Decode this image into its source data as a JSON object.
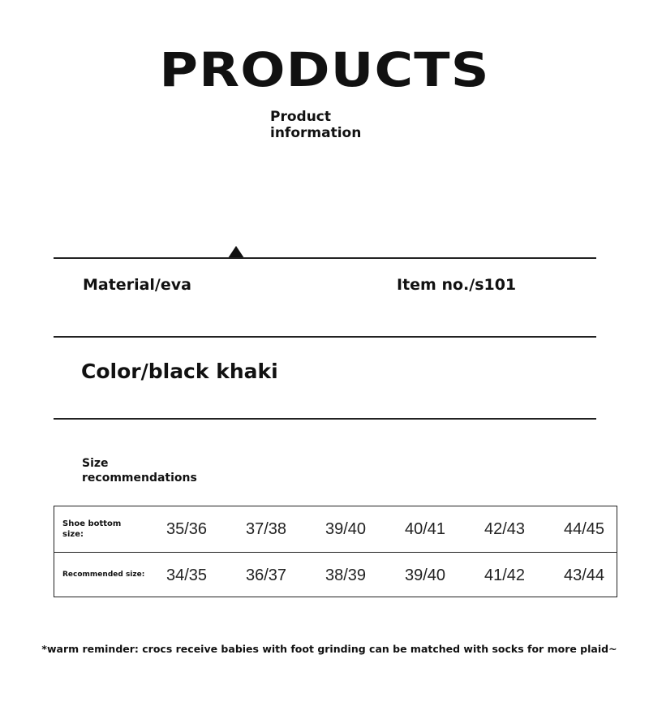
{
  "header": {
    "title": "PRODUCTS",
    "subtitle_line1": "Product",
    "subtitle_line2": "information"
  },
  "fields": {
    "material": "Material/eva",
    "item_no": "Item no./s101",
    "color": "Color/black khaki"
  },
  "size": {
    "heading_line1": "Size",
    "heading_line2": "recommendations",
    "table": {
      "row_labels": {
        "shoe_line1": "Shoe bottom",
        "shoe_line2": "size:",
        "recommended": "Recommended size:"
      },
      "shoe_bottom": [
        "35/36",
        "37/38",
        "39/40",
        "40/41",
        "42/43",
        "44/45"
      ],
      "recommended": [
        "34/35",
        "36/37",
        "38/39",
        "39/40",
        "41/42",
        "43/44"
      ]
    }
  },
  "note": "*warm reminder: crocs receive babies with foot grinding can be matched with socks for more plaid~"
}
